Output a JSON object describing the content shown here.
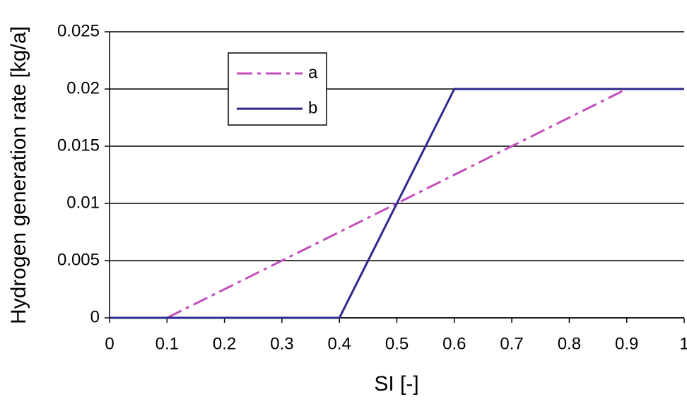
{
  "chart_data": {
    "type": "line",
    "x_label": "SI [-]",
    "y_label": "Hydrogen generation rate [kg/a]",
    "x": [
      0,
      0.1,
      0.4,
      0.6,
      0.9,
      1
    ],
    "series": [
      {
        "name": "a",
        "color": "#c24fbb",
        "dash": true,
        "values": [
          0,
          0,
          0.0075,
          0.0125,
          0.02,
          0.02
        ]
      },
      {
        "name": "b",
        "color": "#2e2a8c",
        "dash": false,
        "values": [
          0,
          0,
          0,
          0.02,
          0.02,
          0.02
        ]
      }
    ],
    "xlim": [
      0,
      1
    ],
    "xticks": [
      0,
      0.1,
      0.2,
      0.3,
      0.4,
      0.5,
      0.6,
      0.7,
      0.8,
      0.9,
      1
    ],
    "ylim": [
      0,
      0.025
    ],
    "yticks": [
      0,
      0.005,
      0.01,
      0.015,
      0.02,
      0.025
    ],
    "grid": true
  }
}
